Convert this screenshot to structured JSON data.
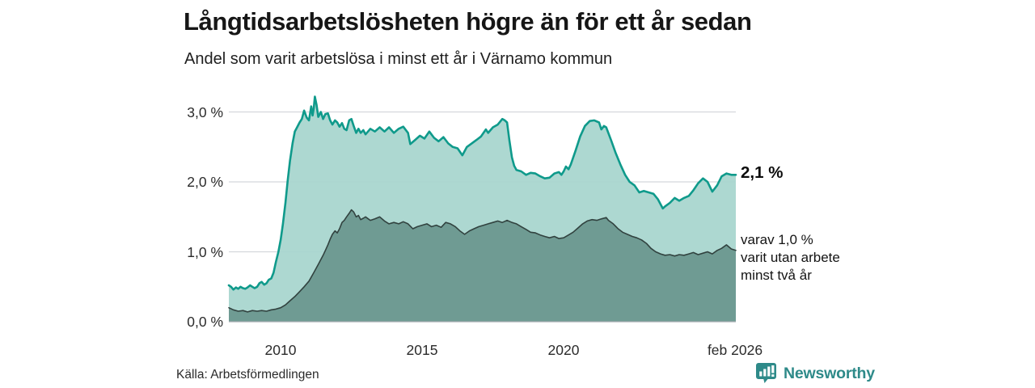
{
  "header": {
    "title": "Långtidsarbetslösheten högre än för ett år sedan",
    "subtitle": "Andel som varit arbetslösa i minst ett år i Värnamo kommun"
  },
  "footer": {
    "source": "Källa: Arbetsförmedlingen",
    "brand_name": "Newsworthy"
  },
  "colors": {
    "total_line": "#0f9a8b",
    "total_fill": "#a7d5cd",
    "two_year_line": "#31423f",
    "two_year_fill": "#6b988f",
    "gridline": "#d4d7dc",
    "axis_line": "#a7adb2",
    "brand_teal": "#2e8a89",
    "text_dark": "#161616"
  },
  "chart_data": {
    "type": "area",
    "title": "Långtidsarbetslösheten högre än för ett år sedan",
    "subtitle": "Andel som varit arbetslösa i minst ett år i Värnamo kommun",
    "xlabel": "",
    "ylabel": "",
    "x_domain": [
      2008.17,
      2026.08
    ],
    "ylim": [
      0,
      3.31
    ],
    "grid": "horizontal",
    "legend_position": "annotations-right",
    "y_ticks": [
      {
        "v": 3,
        "label": "3,0 %"
      },
      {
        "v": 2,
        "label": "2,0 %"
      },
      {
        "v": 1,
        "label": "1,0 %"
      },
      {
        "v": 0,
        "label": "0,0 %"
      }
    ],
    "x_ticks": [
      {
        "v": 2010,
        "label": "2010"
      },
      {
        "v": 2015,
        "label": "2015"
      },
      {
        "v": 2020,
        "label": "2020"
      },
      {
        "v": 2026.08,
        "label": "feb 2026"
      }
    ],
    "series": [
      {
        "name": "Andel som varit arbetslösa i minst ett år",
        "end_value_pct": 2.1,
        "points": [
          [
            2008.17,
            0.52
          ],
          [
            2008.25,
            0.5
          ],
          [
            2008.33,
            0.46
          ],
          [
            2008.42,
            0.49
          ],
          [
            2008.5,
            0.47
          ],
          [
            2008.58,
            0.5
          ],
          [
            2008.67,
            0.48
          ],
          [
            2008.75,
            0.47
          ],
          [
            2008.83,
            0.49
          ],
          [
            2008.92,
            0.52
          ],
          [
            2009.0,
            0.5
          ],
          [
            2009.08,
            0.48
          ],
          [
            2009.17,
            0.5
          ],
          [
            2009.25,
            0.55
          ],
          [
            2009.33,
            0.57
          ],
          [
            2009.42,
            0.53
          ],
          [
            2009.5,
            0.55
          ],
          [
            2009.58,
            0.6
          ],
          [
            2009.67,
            0.62
          ],
          [
            2009.75,
            0.7
          ],
          [
            2009.83,
            0.85
          ],
          [
            2009.92,
            1.0
          ],
          [
            2010.0,
            1.17
          ],
          [
            2010.08,
            1.4
          ],
          [
            2010.17,
            1.7
          ],
          [
            2010.25,
            2.02
          ],
          [
            2010.33,
            2.3
          ],
          [
            2010.42,
            2.55
          ],
          [
            2010.5,
            2.72
          ],
          [
            2010.58,
            2.78
          ],
          [
            2010.67,
            2.85
          ],
          [
            2010.75,
            2.9
          ],
          [
            2010.83,
            3.02
          ],
          [
            2010.92,
            2.92
          ],
          [
            2011.0,
            2.88
          ],
          [
            2011.08,
            3.08
          ],
          [
            2011.13,
            2.95
          ],
          [
            2011.17,
            3.05
          ],
          [
            2011.21,
            3.22
          ],
          [
            2011.27,
            3.1
          ],
          [
            2011.33,
            2.93
          ],
          [
            2011.42,
            3.0
          ],
          [
            2011.5,
            2.9
          ],
          [
            2011.58,
            2.97
          ],
          [
            2011.67,
            2.98
          ],
          [
            2011.75,
            2.88
          ],
          [
            2011.83,
            2.82
          ],
          [
            2011.92,
            2.88
          ],
          [
            2012.0,
            2.85
          ],
          [
            2012.08,
            2.79
          ],
          [
            2012.17,
            2.84
          ],
          [
            2012.25,
            2.76
          ],
          [
            2012.33,
            2.74
          ],
          [
            2012.42,
            2.88
          ],
          [
            2012.5,
            2.9
          ],
          [
            2012.58,
            2.8
          ],
          [
            2012.67,
            2.7
          ],
          [
            2012.75,
            2.76
          ],
          [
            2012.83,
            2.7
          ],
          [
            2012.92,
            2.74
          ],
          [
            2013.0,
            2.68
          ],
          [
            2013.17,
            2.76
          ],
          [
            2013.33,
            2.72
          ],
          [
            2013.5,
            2.78
          ],
          [
            2013.67,
            2.72
          ],
          [
            2013.83,
            2.78
          ],
          [
            2014.0,
            2.7
          ],
          [
            2014.17,
            2.76
          ],
          [
            2014.33,
            2.79
          ],
          [
            2014.5,
            2.7
          ],
          [
            2014.58,
            2.54
          ],
          [
            2014.75,
            2.6
          ],
          [
            2014.92,
            2.66
          ],
          [
            2015.08,
            2.62
          ],
          [
            2015.25,
            2.72
          ],
          [
            2015.42,
            2.63
          ],
          [
            2015.58,
            2.58
          ],
          [
            2015.75,
            2.64
          ],
          [
            2015.92,
            2.55
          ],
          [
            2016.08,
            2.5
          ],
          [
            2016.25,
            2.48
          ],
          [
            2016.42,
            2.38
          ],
          [
            2016.58,
            2.5
          ],
          [
            2016.75,
            2.55
          ],
          [
            2016.92,
            2.6
          ],
          [
            2017.08,
            2.65
          ],
          [
            2017.25,
            2.75
          ],
          [
            2017.33,
            2.7
          ],
          [
            2017.5,
            2.78
          ],
          [
            2017.67,
            2.82
          ],
          [
            2017.83,
            2.9
          ],
          [
            2017.92,
            2.88
          ],
          [
            2018.0,
            2.85
          ],
          [
            2018.08,
            2.6
          ],
          [
            2018.17,
            2.35
          ],
          [
            2018.25,
            2.23
          ],
          [
            2018.33,
            2.17
          ],
          [
            2018.5,
            2.15
          ],
          [
            2018.67,
            2.1
          ],
          [
            2018.83,
            2.13
          ],
          [
            2019.0,
            2.12
          ],
          [
            2019.17,
            2.08
          ],
          [
            2019.33,
            2.05
          ],
          [
            2019.5,
            2.06
          ],
          [
            2019.67,
            2.12
          ],
          [
            2019.83,
            2.14
          ],
          [
            2019.92,
            2.1
          ],
          [
            2020.0,
            2.15
          ],
          [
            2020.08,
            2.22
          ],
          [
            2020.17,
            2.18
          ],
          [
            2020.25,
            2.25
          ],
          [
            2020.42,
            2.45
          ],
          [
            2020.58,
            2.65
          ],
          [
            2020.75,
            2.8
          ],
          [
            2020.92,
            2.87
          ],
          [
            2021.08,
            2.88
          ],
          [
            2021.25,
            2.85
          ],
          [
            2021.33,
            2.75
          ],
          [
            2021.42,
            2.8
          ],
          [
            2021.5,
            2.78
          ],
          [
            2021.67,
            2.6
          ],
          [
            2021.83,
            2.42
          ],
          [
            2022.0,
            2.25
          ],
          [
            2022.17,
            2.1
          ],
          [
            2022.33,
            2.0
          ],
          [
            2022.5,
            1.95
          ],
          [
            2022.67,
            1.85
          ],
          [
            2022.83,
            1.87
          ],
          [
            2023.0,
            1.85
          ],
          [
            2023.17,
            1.83
          ],
          [
            2023.33,
            1.75
          ],
          [
            2023.5,
            1.62
          ],
          [
            2023.58,
            1.65
          ],
          [
            2023.75,
            1.7
          ],
          [
            2023.92,
            1.77
          ],
          [
            2024.08,
            1.73
          ],
          [
            2024.25,
            1.77
          ],
          [
            2024.42,
            1.8
          ],
          [
            2024.58,
            1.88
          ],
          [
            2024.75,
            1.98
          ],
          [
            2024.92,
            2.05
          ],
          [
            2025.08,
            2.0
          ],
          [
            2025.25,
            1.86
          ],
          [
            2025.42,
            1.95
          ],
          [
            2025.58,
            2.08
          ],
          [
            2025.75,
            2.12
          ],
          [
            2025.92,
            2.1
          ],
          [
            2026.08,
            2.1
          ]
        ]
      },
      {
        "name": "varav utan arbete minst två år",
        "end_value_pct": 1.0,
        "points": [
          [
            2008.17,
            0.2
          ],
          [
            2008.33,
            0.17
          ],
          [
            2008.5,
            0.15
          ],
          [
            2008.67,
            0.16
          ],
          [
            2008.83,
            0.14
          ],
          [
            2009.0,
            0.16
          ],
          [
            2009.17,
            0.15
          ],
          [
            2009.33,
            0.16
          ],
          [
            2009.5,
            0.15
          ],
          [
            2009.67,
            0.17
          ],
          [
            2009.83,
            0.18
          ],
          [
            2010.0,
            0.2
          ],
          [
            2010.17,
            0.24
          ],
          [
            2010.33,
            0.3
          ],
          [
            2010.5,
            0.36
          ],
          [
            2010.67,
            0.43
          ],
          [
            2010.83,
            0.5
          ],
          [
            2011.0,
            0.58
          ],
          [
            2011.17,
            0.7
          ],
          [
            2011.33,
            0.82
          ],
          [
            2011.5,
            0.95
          ],
          [
            2011.58,
            1.02
          ],
          [
            2011.67,
            1.1
          ],
          [
            2011.75,
            1.18
          ],
          [
            2011.83,
            1.25
          ],
          [
            2011.92,
            1.3
          ],
          [
            2012.0,
            1.27
          ],
          [
            2012.08,
            1.33
          ],
          [
            2012.17,
            1.42
          ],
          [
            2012.25,
            1.45
          ],
          [
            2012.33,
            1.5
          ],
          [
            2012.42,
            1.55
          ],
          [
            2012.5,
            1.6
          ],
          [
            2012.58,
            1.57
          ],
          [
            2012.67,
            1.5
          ],
          [
            2012.75,
            1.52
          ],
          [
            2012.83,
            1.46
          ],
          [
            2012.92,
            1.48
          ],
          [
            2013.0,
            1.5
          ],
          [
            2013.17,
            1.45
          ],
          [
            2013.33,
            1.47
          ],
          [
            2013.5,
            1.5
          ],
          [
            2013.67,
            1.44
          ],
          [
            2013.83,
            1.4
          ],
          [
            2014.0,
            1.42
          ],
          [
            2014.17,
            1.4
          ],
          [
            2014.33,
            1.43
          ],
          [
            2014.5,
            1.4
          ],
          [
            2014.67,
            1.33
          ],
          [
            2014.83,
            1.36
          ],
          [
            2015.0,
            1.38
          ],
          [
            2015.17,
            1.4
          ],
          [
            2015.33,
            1.36
          ],
          [
            2015.5,
            1.38
          ],
          [
            2015.67,
            1.35
          ],
          [
            2015.83,
            1.42
          ],
          [
            2016.0,
            1.4
          ],
          [
            2016.17,
            1.36
          ],
          [
            2016.33,
            1.3
          ],
          [
            2016.5,
            1.25
          ],
          [
            2016.67,
            1.3
          ],
          [
            2016.83,
            1.33
          ],
          [
            2017.0,
            1.36
          ],
          [
            2017.17,
            1.38
          ],
          [
            2017.33,
            1.4
          ],
          [
            2017.5,
            1.42
          ],
          [
            2017.67,
            1.44
          ],
          [
            2017.83,
            1.42
          ],
          [
            2018.0,
            1.45
          ],
          [
            2018.17,
            1.42
          ],
          [
            2018.33,
            1.4
          ],
          [
            2018.5,
            1.36
          ],
          [
            2018.67,
            1.32
          ],
          [
            2018.83,
            1.28
          ],
          [
            2019.0,
            1.27
          ],
          [
            2019.17,
            1.24
          ],
          [
            2019.33,
            1.22
          ],
          [
            2019.5,
            1.2
          ],
          [
            2019.67,
            1.22
          ],
          [
            2019.83,
            1.19
          ],
          [
            2020.0,
            1.2
          ],
          [
            2020.17,
            1.24
          ],
          [
            2020.33,
            1.28
          ],
          [
            2020.5,
            1.34
          ],
          [
            2020.67,
            1.4
          ],
          [
            2020.83,
            1.44
          ],
          [
            2021.0,
            1.46
          ],
          [
            2021.17,
            1.45
          ],
          [
            2021.33,
            1.47
          ],
          [
            2021.5,
            1.49
          ],
          [
            2021.58,
            1.45
          ],
          [
            2021.75,
            1.4
          ],
          [
            2021.92,
            1.33
          ],
          [
            2022.08,
            1.28
          ],
          [
            2022.25,
            1.25
          ],
          [
            2022.42,
            1.22
          ],
          [
            2022.58,
            1.2
          ],
          [
            2022.75,
            1.17
          ],
          [
            2022.92,
            1.12
          ],
          [
            2023.08,
            1.05
          ],
          [
            2023.25,
            1.0
          ],
          [
            2023.42,
            0.97
          ],
          [
            2023.58,
            0.95
          ],
          [
            2023.75,
            0.96
          ],
          [
            2023.92,
            0.94
          ],
          [
            2024.08,
            0.96
          ],
          [
            2024.25,
            0.95
          ],
          [
            2024.42,
            0.97
          ],
          [
            2024.58,
            0.99
          ],
          [
            2024.75,
            0.96
          ],
          [
            2024.92,
            0.98
          ],
          [
            2025.08,
            1.0
          ],
          [
            2025.25,
            0.97
          ],
          [
            2025.42,
            1.02
          ],
          [
            2025.58,
            1.05
          ],
          [
            2025.75,
            1.1
          ],
          [
            2025.92,
            1.04
          ],
          [
            2026.08,
            1.02
          ]
        ]
      }
    ],
    "annotations": {
      "total_label": "2,1 %",
      "sub_line_1": "varav 1,0 %",
      "sub_line_2": "varit utan arbete",
      "sub_line_3": "minst två år"
    }
  }
}
